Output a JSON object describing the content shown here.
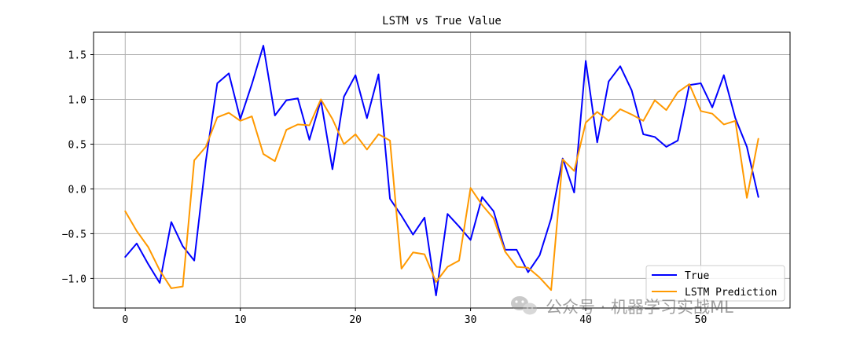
{
  "chart_data": {
    "type": "line",
    "title": "LSTM vs True Value",
    "xlabel": "",
    "ylabel": "",
    "xlim": [
      -2.75,
      57.75
    ],
    "ylim": [
      -1.33,
      1.75
    ],
    "xticks": [
      0,
      10,
      20,
      30,
      40,
      50
    ],
    "yticks": [
      -1.0,
      -0.5,
      0.0,
      0.5,
      1.0,
      1.5
    ],
    "ytick_labels": [
      "−1.0",
      "−0.5",
      "0.0",
      "0.5",
      "1.0",
      "1.5"
    ],
    "grid": true,
    "legend_position": "lower-right",
    "x": [
      0,
      1,
      2,
      3,
      4,
      5,
      6,
      7,
      8,
      9,
      10,
      11,
      12,
      13,
      14,
      15,
      16,
      17,
      18,
      19,
      20,
      21,
      22,
      23,
      24,
      25,
      26,
      27,
      28,
      29,
      30,
      31,
      32,
      33,
      34,
      35,
      36,
      37,
      38,
      39,
      40,
      41,
      42,
      43,
      44,
      45,
      46,
      47,
      48,
      49,
      50,
      51,
      52,
      53,
      54,
      55
    ],
    "series": [
      {
        "name": "True",
        "color": "#0000ff",
        "values": [
          -0.76,
          -0.61,
          -0.84,
          -1.05,
          -0.37,
          -0.64,
          -0.8,
          0.31,
          1.18,
          1.29,
          0.78,
          1.17,
          1.6,
          0.82,
          0.99,
          1.01,
          0.55,
          0.99,
          0.22,
          1.03,
          1.27,
          0.79,
          1.28,
          -0.11,
          -0.3,
          -0.51,
          -0.32,
          -1.19,
          -0.28,
          -0.42,
          -0.57,
          -0.09,
          -0.25,
          -0.68,
          -0.68,
          -0.93,
          -0.74,
          -0.33,
          0.34,
          -0.04,
          1.43,
          0.52,
          1.2,
          1.37,
          1.1,
          0.61,
          0.58,
          0.47,
          0.54,
          1.16,
          1.18,
          0.91,
          1.27,
          0.79,
          0.47,
          -0.09
        ]
      },
      {
        "name": "LSTM Prediction",
        "color": "#ff9900",
        "values": [
          -0.25,
          -0.47,
          -0.65,
          -0.91,
          -1.11,
          -1.09,
          0.32,
          0.47,
          0.8,
          0.85,
          0.76,
          0.81,
          0.39,
          0.31,
          0.66,
          0.72,
          0.71,
          1.0,
          0.78,
          0.5,
          0.61,
          0.44,
          0.61,
          0.54,
          -0.89,
          -0.71,
          -0.73,
          -1.04,
          -0.87,
          -0.8,
          0.01,
          -0.18,
          -0.33,
          -0.7,
          -0.87,
          -0.88,
          -0.99,
          -1.13,
          0.33,
          0.2,
          0.74,
          0.86,
          0.76,
          0.89,
          0.83,
          0.76,
          0.99,
          0.88,
          1.08,
          1.17,
          0.87,
          0.84,
          0.72,
          0.76,
          -0.1,
          0.56
        ]
      }
    ]
  },
  "watermark": {
    "text": "公众号 · 机器学习实战ML",
    "icon": "wechat-icon"
  }
}
